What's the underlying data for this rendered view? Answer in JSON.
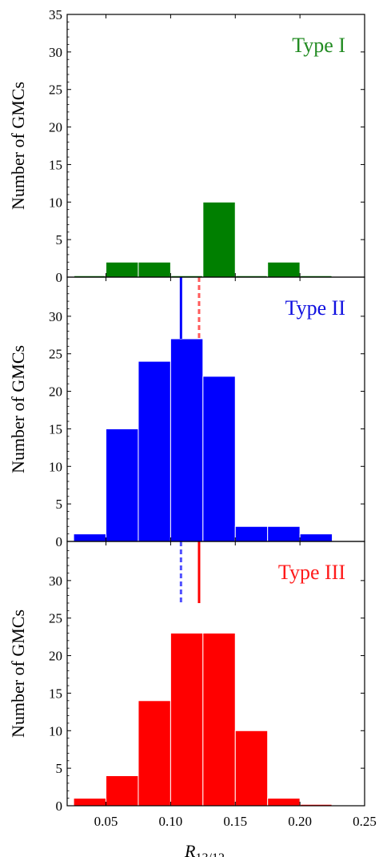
{
  "chart_data": [
    {
      "type": "bar",
      "panel_label": "Type I",
      "panel_label_color": "#228B22",
      "color": "#007F00",
      "ylabel": "Number of GMCs",
      "ylim": [
        0,
        35
      ],
      "yticks": [
        0,
        5,
        10,
        15,
        20,
        25,
        30,
        35
      ],
      "xlim": [
        0.02,
        0.25
      ],
      "bin_edges": [
        0.025,
        0.05,
        0.075,
        0.1,
        0.125,
        0.15,
        0.175,
        0.2,
        0.225
      ],
      "values": [
        0,
        2,
        2,
        0,
        10,
        0,
        2,
        0
      ],
      "lines": []
    },
    {
      "type": "bar",
      "panel_label": "Type II",
      "panel_label_color": "#1010E0",
      "color": "#0000FF",
      "ylabel": "Number of GMCs",
      "ylim": [
        0,
        35
      ],
      "yticks": [
        0,
        5,
        10,
        15,
        20,
        25,
        30
      ],
      "xlim": [
        0.02,
        0.25
      ],
      "bin_edges": [
        0.025,
        0.05,
        0.075,
        0.1,
        0.125,
        0.15,
        0.175,
        0.2,
        0.225
      ],
      "values": [
        1,
        15,
        24,
        27,
        22,
        2,
        2,
        1
      ],
      "lines": [
        {
          "x": 0.108,
          "color": "#0000FF",
          "style": "solid"
        },
        {
          "x": 0.122,
          "color": "#FF5A5A",
          "style": "dashed"
        }
      ]
    },
    {
      "type": "bar",
      "panel_label": "Type III",
      "panel_label_color": "#FF1A1A",
      "color": "#FF0000",
      "ylabel": "Number of GMCs",
      "ylim": [
        0,
        35
      ],
      "yticks": [
        0,
        5,
        10,
        15,
        20,
        25,
        30
      ],
      "xlim": [
        0.02,
        0.25
      ],
      "xticks": [
        "0.05",
        "0.10",
        "0.15",
        "0.20",
        "0.25"
      ],
      "xlabel_main": "R",
      "xlabel_sub": "13/12",
      "bin_edges": [
        0.025,
        0.05,
        0.075,
        0.1,
        0.125,
        0.15,
        0.175,
        0.2,
        0.225
      ],
      "values": [
        1,
        4,
        14,
        23,
        23,
        10,
        1,
        0
      ],
      "lines": [
        {
          "x": 0.108,
          "color": "#5050FF",
          "style": "dashed"
        },
        {
          "x": 0.122,
          "color": "#FF0000",
          "style": "solid"
        }
      ]
    }
  ]
}
